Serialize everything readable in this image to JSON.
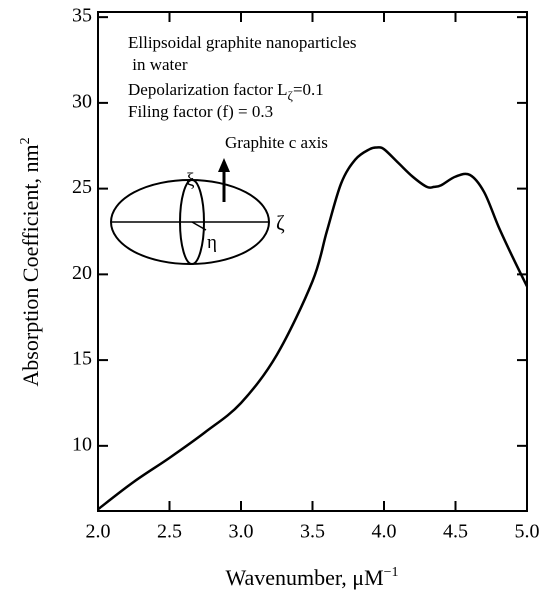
{
  "chart_data": {
    "type": "line",
    "xlabel": "Wavenumber, μM",
    "xlabel_sup": "−1",
    "ylabel": "Absorption Coefficient, nm",
    "ylabel_sup": "2",
    "annotations": [
      "Ellipsoidal graphite nanoparticles",
      " in water",
      "Depolarization factor L",
      "=0.1",
      "Filing factor (f) = 0.3"
    ],
    "annotation_sub": "ζ",
    "diagram_labels": {
      "arrow": "Graphite c axis",
      "xi": "ξ",
      "eta": "η",
      "zeta": "ζ"
    },
    "x": [
      2.0,
      2.25,
      2.5,
      2.75,
      3.0,
      3.25,
      3.5,
      3.6,
      3.7,
      3.8,
      3.9,
      3.95,
      4.0,
      4.1,
      4.2,
      4.3,
      4.35,
      4.4,
      4.5,
      4.6,
      4.7,
      4.8,
      4.9,
      5.0
    ],
    "values": [
      6.3,
      7.9,
      9.3,
      10.8,
      12.5,
      15.3,
      19.6,
      22.5,
      25.3,
      26.7,
      27.3,
      27.4,
      27.3,
      26.5,
      25.7,
      25.1,
      25.1,
      25.2,
      25.7,
      25.8,
      24.8,
      22.8,
      21.0,
      19.3
    ],
    "color": "#000000",
    "xlim": [
      2.0,
      5.0
    ],
    "xticks": [
      {
        "value": 2,
        "label": "2.0"
      },
      2.5,
      {
        "value": 3,
        "label": "3.0"
      },
      3.5,
      {
        "value": 4,
        "label": "4.0"
      },
      4.5,
      {
        "value": 5,
        "label": "5.0"
      }
    ],
    "ylim": [
      6.2,
      35.3
    ],
    "yticks": [
      10,
      15,
      20,
      25,
      30,
      35
    ]
  }
}
